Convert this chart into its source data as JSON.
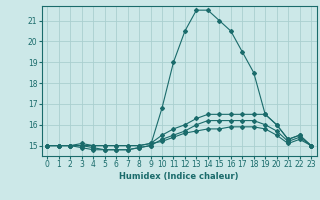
{
  "title": "",
  "xlabel": "Humidex (Indice chaleur)",
  "ylabel": "",
  "bg_color": "#cce8e8",
  "grid_color": "#aacfcf",
  "line_color": "#1a6b6b",
  "xlim": [
    -0.5,
    23.5
  ],
  "ylim": [
    14.5,
    21.7
  ],
  "xticks": [
    0,
    1,
    2,
    3,
    4,
    5,
    6,
    7,
    8,
    9,
    10,
    11,
    12,
    13,
    14,
    15,
    16,
    17,
    18,
    19,
    20,
    21,
    22,
    23
  ],
  "yticks": [
    15,
    16,
    17,
    18,
    19,
    20,
    21
  ],
  "curves": [
    {
      "x": [
        0,
        1,
        2,
        3,
        4,
        5,
        6,
        7,
        8,
        9,
        10,
        11,
        12,
        13,
        14,
        15,
        16,
        17,
        18,
        19,
        20,
        21,
        22,
        23
      ],
      "y": [
        15,
        15,
        15,
        15,
        14.9,
        14.8,
        14.8,
        14.8,
        14.9,
        15,
        16.8,
        19,
        20.5,
        21.5,
        21.5,
        21,
        20.5,
        19.5,
        18.5,
        16.5,
        16,
        15.3,
        15.5,
        15
      ]
    },
    {
      "x": [
        0,
        1,
        2,
        3,
        4,
        5,
        6,
        7,
        8,
        9,
        10,
        11,
        12,
        13,
        14,
        15,
        16,
        17,
        18,
        19,
        20,
        21,
        22,
        23
      ],
      "y": [
        15,
        15,
        15,
        15.1,
        15,
        15,
        15,
        15,
        15,
        15.1,
        15.5,
        15.8,
        16,
        16.3,
        16.5,
        16.5,
        16.5,
        16.5,
        16.5,
        16.5,
        16,
        15.3,
        15.5,
        15
      ]
    },
    {
      "x": [
        0,
        1,
        2,
        3,
        4,
        5,
        6,
        7,
        8,
        9,
        10,
        11,
        12,
        13,
        14,
        15,
        16,
        17,
        18,
        19,
        20,
        21,
        22,
        23
      ],
      "y": [
        15,
        15,
        15,
        14.9,
        14.8,
        14.8,
        14.8,
        14.8,
        14.9,
        15,
        15.3,
        15.5,
        15.7,
        16,
        16.2,
        16.2,
        16.2,
        16.2,
        16.2,
        16.0,
        15.7,
        15.2,
        15.4,
        15
      ]
    },
    {
      "x": [
        0,
        1,
        2,
        3,
        4,
        5,
        6,
        7,
        8,
        9,
        10,
        11,
        12,
        13,
        14,
        15,
        16,
        17,
        18,
        19,
        20,
        21,
        22,
        23
      ],
      "y": [
        15,
        15,
        15,
        15,
        15,
        15,
        15,
        15,
        15,
        15.1,
        15.2,
        15.4,
        15.6,
        15.7,
        15.8,
        15.8,
        15.9,
        15.9,
        15.9,
        15.8,
        15.5,
        15.1,
        15.3,
        15
      ]
    }
  ]
}
